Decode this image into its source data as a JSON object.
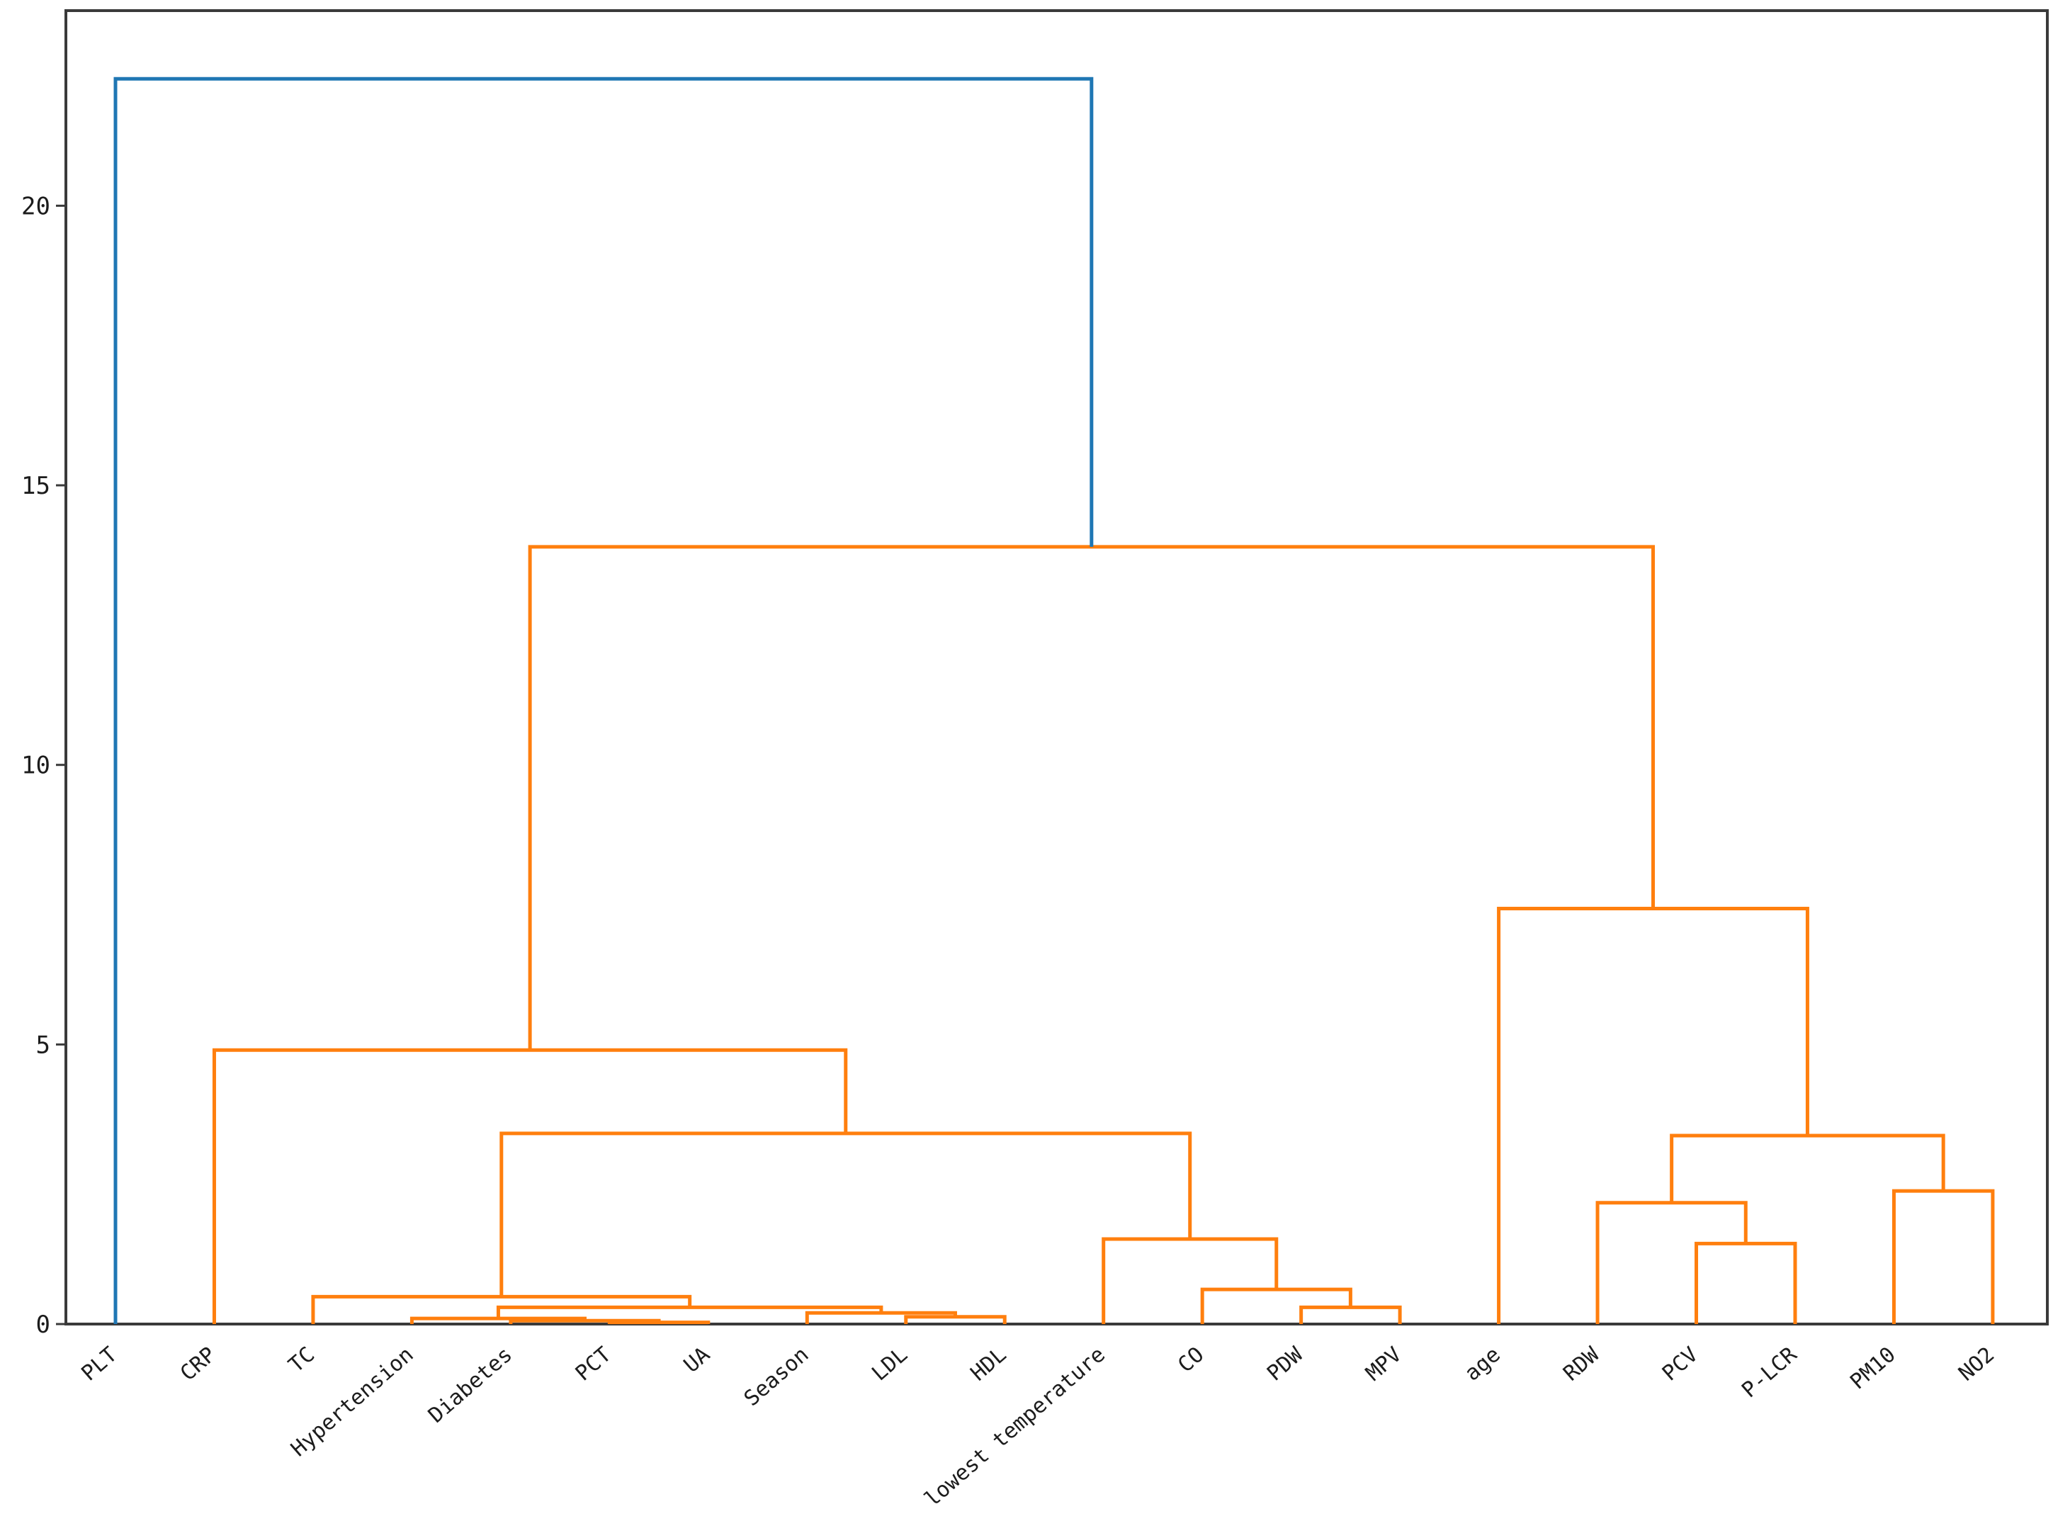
{
  "figure": {
    "background": "#ffffff"
  },
  "chart_data": {
    "type": "dendrogram",
    "title": "",
    "orientation": "top",
    "leaves": [
      "PLT",
      "CRP",
      "TC",
      "Hypertension",
      "Diabetes",
      "PCT",
      "UA",
      "Season",
      "LDL",
      "HDL",
      "lowest temperature",
      "CO",
      "PDW",
      "MPV",
      "age",
      "RDW",
      "PCV",
      "P-LCR",
      "PM10",
      "NO2"
    ],
    "y_ticks": [
      "0",
      "5",
      "10",
      "15",
      "20"
    ],
    "y_tick_values": [
      0,
      5,
      10,
      15,
      20
    ],
    "ylim": [
      0,
      23.5
    ],
    "grid": false,
    "legend": false,
    "colors": {
      "blue": "#1f77b4",
      "orange": "#ff7f0e",
      "axis": "#3a3a3a",
      "text": "#1c1c1c"
    },
    "merges": [
      {
        "left": "PCT",
        "right": "UA",
        "height": 0.03,
        "color": "orange"
      },
      {
        "left": "Diabetes",
        "right": 0,
        "height": 0.06,
        "color": "orange"
      },
      {
        "left": "Hypertension",
        "right": 1,
        "height": 0.1,
        "color": "orange"
      },
      {
        "left": "LDL",
        "right": "HDL",
        "height": 0.13,
        "color": "orange"
      },
      {
        "left": "Season",
        "right": 3,
        "height": 0.2,
        "color": "orange"
      },
      {
        "left": 2,
        "right": 4,
        "height": 0.3,
        "color": "orange"
      },
      {
        "left": "TC",
        "right": 5,
        "height": 0.49,
        "color": "orange"
      },
      {
        "left": "PDW",
        "right": "MPV",
        "height": 0.3,
        "color": "orange"
      },
      {
        "left": "CO",
        "right": 7,
        "height": 0.62,
        "color": "orange"
      },
      {
        "left": "lowest temperature",
        "right": 8,
        "height": 1.52,
        "color": "orange"
      },
      {
        "left": 6,
        "right": 9,
        "height": 3.41,
        "color": "orange"
      },
      {
        "left": "CRP",
        "right": 10,
        "height": 4.9,
        "color": "orange"
      },
      {
        "left": "PCV",
        "right": "P-LCR",
        "height": 1.44,
        "color": "orange"
      },
      {
        "left": "RDW",
        "right": 12,
        "height": 2.17,
        "color": "orange"
      },
      {
        "left": "PM10",
        "right": "NO2",
        "height": 2.38,
        "color": "orange"
      },
      {
        "left": 13,
        "right": 14,
        "height": 3.37,
        "color": "orange"
      },
      {
        "left": "age",
        "right": 15,
        "height": 7.43,
        "color": "orange"
      },
      {
        "left": 11,
        "right": 16,
        "height": 13.9,
        "color": "orange"
      },
      {
        "left": "PLT",
        "right": 17,
        "height": 22.27,
        "color": "blue"
      }
    ]
  }
}
